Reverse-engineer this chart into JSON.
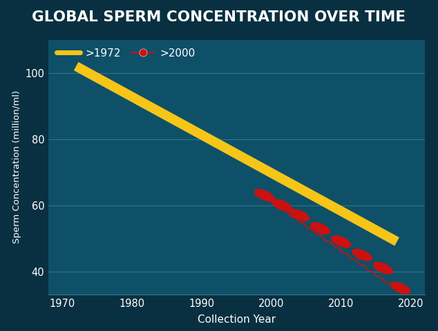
{
  "title": "GLOBAL SPERM CONCENTRATION OVER TIME",
  "title_bg": "#9b0a0a",
  "title_color": "#ffffff",
  "bg_color": "#0e5068",
  "bg_color2": "#083040",
  "xlabel": "Collection Year",
  "ylabel": "Sperm Concentration (million/ml)",
  "xlim": [
    1968,
    2022
  ],
  "ylim": [
    33,
    110
  ],
  "yticks": [
    40,
    60,
    80,
    100
  ],
  "xticks": [
    1970,
    1980,
    1990,
    2000,
    2010,
    2020
  ],
  "line1_x": [
    1972,
    2018
  ],
  "line1_y": [
    102,
    49
  ],
  "line1_color": "#f5c518",
  "line1_lw": 10,
  "line1_label": ">1972",
  "line2_x": [
    1998,
    2019
  ],
  "line2_y": [
    64,
    33
  ],
  "line2_color": "#cc1111",
  "line2_lw": 1.5,
  "line2_label": ">2000",
  "grid_color": "#4a8fa8",
  "grid_alpha": 0.6,
  "tick_color": "#ffffff",
  "label_color": "#ffffff",
  "sperm_heads_x": [
    1999,
    2001.5,
    2004,
    2007,
    2010,
    2013,
    2016,
    2018.5
  ],
  "sperm_heads_y": [
    63,
    60,
    57,
    53,
    49,
    45,
    41,
    35
  ]
}
